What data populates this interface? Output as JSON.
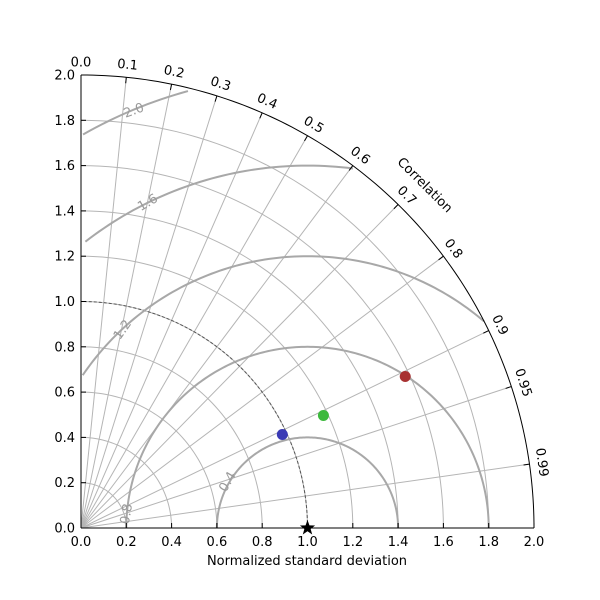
{
  "chart_data": {
    "type": "taylor_diagram",
    "xlabel": "Normalized standard deviation",
    "corr_axis_label": "Correlation",
    "std_range": [
      0,
      2.0
    ],
    "std_ticks": [
      "0.0",
      "0.2",
      "0.4",
      "0.6",
      "0.8",
      "1.0",
      "1.2",
      "1.4",
      "1.6",
      "1.8",
      "2.0"
    ],
    "std_tick_values": [
      0,
      0.2,
      0.4,
      0.6,
      0.8,
      1.0,
      1.2,
      1.4,
      1.6,
      1.8,
      2.0
    ],
    "corr_ticks": [
      "0.0",
      "0.1",
      "0.2",
      "0.3",
      "0.4",
      "0.5",
      "0.6",
      "0.7",
      "0.8",
      "0.9",
      "0.95",
      "0.99"
    ],
    "corr_tick_values": [
      0.0,
      0.1,
      0.2,
      0.3,
      0.4,
      0.5,
      0.6,
      0.7,
      0.8,
      0.9,
      0.95,
      0.99
    ],
    "rms_contours": [
      {
        "label": "0.4",
        "value": 0.4
      },
      {
        "label": "0.8",
        "value": 0.8
      },
      {
        "label": "1.2",
        "value": 1.2
      },
      {
        "label": "1.6",
        "value": 1.6
      },
      {
        "label": "2.0",
        "value": 2.0
      }
    ],
    "reference": {
      "std": 1.0,
      "correlation": 1.0,
      "marker": "star"
    },
    "ref_arc_std": 1.0,
    "grid": true,
    "points": [
      {
        "std": 0.98,
        "correlation": 0.907,
        "color": "#3a3ab5"
      },
      {
        "std": 1.18,
        "correlation": 0.907,
        "color": "#3db93d"
      },
      {
        "std": 1.58,
        "correlation": 0.906,
        "color": "#a83232"
      }
    ]
  }
}
